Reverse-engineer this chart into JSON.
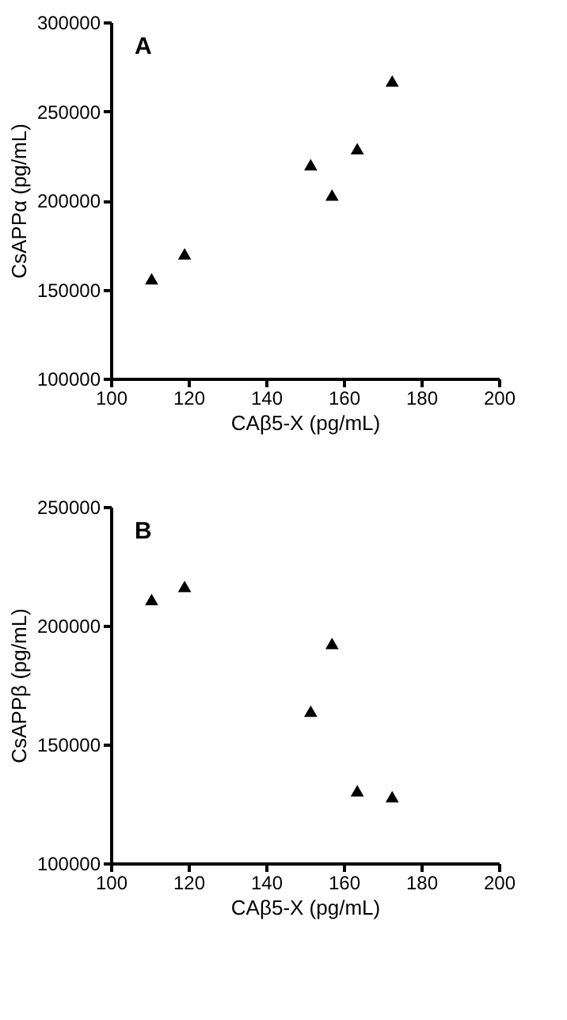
{
  "chart_data": [
    {
      "type": "scatter",
      "xlabel": "CAβ5-X (pg/mL)",
      "ylabel": "CsAPPα (pg/mL)",
      "annotations": [
        "A"
      ],
      "x": [
        110.5,
        119,
        151.5,
        157,
        163.5,
        172.5
      ],
      "series": [
        {
          "color": "#000000",
          "values": [
            156000,
            170000,
            220000,
            203000,
            229000,
            267000
          ]
        }
      ],
      "xlim": [
        100,
        200
      ],
      "xticks": [
        100,
        120,
        140,
        160,
        180,
        200
      ],
      "ylim": [
        100000,
        300000
      ],
      "yticks": [
        100000,
        150000,
        200000,
        250000,
        300000
      ],
      "marker": "triangle",
      "grid": false
    },
    {
      "type": "scatter",
      "xlabel": "CAβ5-X (pg/mL)",
      "ylabel": "CsAPPβ (pg/mL)",
      "annotations": [
        "B"
      ],
      "x": [
        110.5,
        119,
        151.5,
        157,
        163.5,
        172.5
      ],
      "series": [
        {
          "color": "#000000",
          "values": [
            211000,
            216500,
            164000,
            192500,
            130500,
            128000
          ]
        }
      ],
      "xlim": [
        100,
        200
      ],
      "xticks": [
        100,
        120,
        140,
        160,
        180,
        200
      ],
      "ylim": [
        100000,
        250000
      ],
      "yticks": [
        100000,
        150000,
        200000,
        250000
      ],
      "marker": "triangle",
      "grid": false
    }
  ]
}
